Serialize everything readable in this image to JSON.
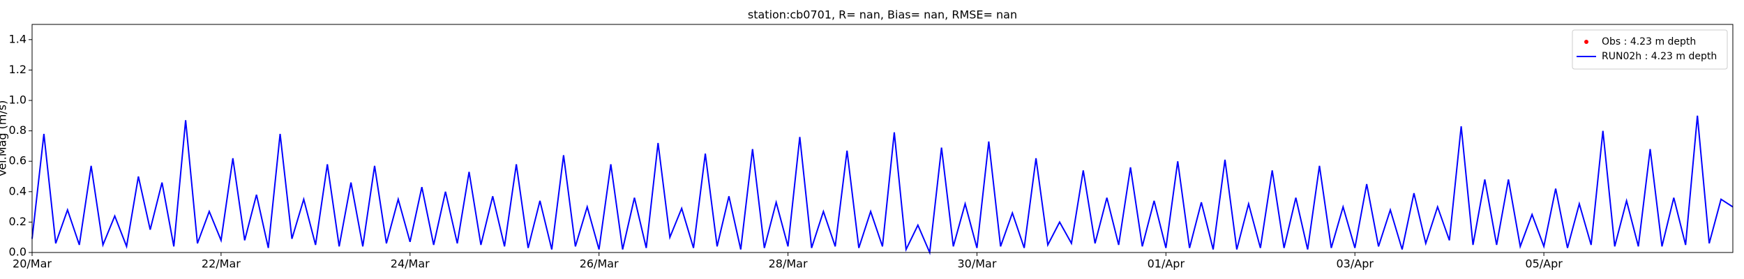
{
  "chart_data": {
    "type": "line",
    "title": "station:cb0701, R=   nan, Bias=    nan, RMSE=    nan",
    "y_label": "Vel.Mag (m/s)",
    "xlim": [
      0,
      18
    ],
    "xticks": [
      {
        "value": 0,
        "label": "20/Mar"
      },
      {
        "value": 2,
        "label": "22/Mar"
      },
      {
        "value": 4,
        "label": "24/Mar"
      },
      {
        "value": 6,
        "label": "26/Mar"
      },
      {
        "value": 8,
        "label": "28/Mar"
      },
      {
        "value": 10,
        "label": "30/Mar"
      },
      {
        "value": 12,
        "label": "01/Apr"
      },
      {
        "value": 14,
        "label": "03/Apr"
      },
      {
        "value": 16,
        "label": "05/Apr"
      }
    ],
    "ylim": [
      0,
      1.5
    ],
    "yticks": [
      {
        "value": 0,
        "label": "0.0"
      },
      0.2,
      0.4,
      0.6,
      0.8,
      {
        "value": 1,
        "label": "1.0"
      },
      1.2,
      1.4
    ],
    "grid": false,
    "legend": "upper right",
    "series": [
      {
        "name": "Obs : 4.23 m depth",
        "color": "#ff0000",
        "style": "marker",
        "x": [],
        "values": []
      },
      {
        "name": "RUN02h : 4.23 m depth",
        "color": "#0000ff",
        "style": "line",
        "x": [
          0,
          0.125,
          0.25,
          0.375,
          0.5,
          0.625,
          0.75,
          0.875,
          1,
          1.125,
          1.25,
          1.375,
          1.5,
          1.625,
          1.75,
          1.875,
          2,
          2.125,
          2.25,
          2.375,
          2.5,
          2.625,
          2.75,
          2.875,
          3,
          3.125,
          3.25,
          3.375,
          3.5,
          3.625,
          3.75,
          3.875,
          4,
          4.125,
          4.25,
          4.375,
          4.5,
          4.625,
          4.75,
          4.875,
          5,
          5.125,
          5.25,
          5.375,
          5.5,
          5.625,
          5.75,
          5.875,
          6,
          6.125,
          6.25,
          6.375,
          6.5,
          6.625,
          6.75,
          6.875,
          7,
          7.125,
          7.25,
          7.375,
          7.5,
          7.625,
          7.75,
          7.875,
          8,
          8.125,
          8.25,
          8.375,
          8.5,
          8.625,
          8.75,
          8.875,
          9,
          9.125,
          9.25,
          9.375,
          9.5,
          9.625,
          9.75,
          9.875,
          10,
          10.125,
          10.25,
          10.375,
          10.5,
          10.625,
          10.75,
          10.875,
          11,
          11.125,
          11.25,
          11.375,
          11.5,
          11.625,
          11.75,
          11.875,
          12,
          12.125,
          12.25,
          12.375,
          12.5,
          12.625,
          12.75,
          12.875,
          13,
          13.125,
          13.25,
          13.375,
          13.5,
          13.625,
          13.75,
          13.875,
          14,
          14.125,
          14.25,
          14.375,
          14.5,
          14.625,
          14.75,
          14.875,
          15,
          15.125,
          15.25,
          15.375,
          15.5,
          15.625,
          15.75,
          15.875,
          16,
          16.125,
          16.25,
          16.375,
          16.5,
          16.625,
          16.75,
          16.875,
          17,
          17.125,
          17.25,
          17.375,
          17.5,
          17.625,
          17.75,
          17.875,
          18
        ],
        "values": [
          0.09,
          0.78,
          0.06,
          0.28,
          0.05,
          0.57,
          0.05,
          0.24,
          0.04,
          0.5,
          0.15,
          0.46,
          0.04,
          0.87,
          0.06,
          0.27,
          0.08,
          0.62,
          0.08,
          0.38,
          0.03,
          0.78,
          0.09,
          0.35,
          0.05,
          0.58,
          0.04,
          0.46,
          0.04,
          0.57,
          0.06,
          0.35,
          0.07,
          0.43,
          0.05,
          0.4,
          0.06,
          0.53,
          0.05,
          0.37,
          0.04,
          0.58,
          0.03,
          0.34,
          0.02,
          0.64,
          0.04,
          0.3,
          0.02,
          0.58,
          0.02,
          0.36,
          0.03,
          0.72,
          0.1,
          0.29,
          0.03,
          0.65,
          0.04,
          0.37,
          0.02,
          0.68,
          0.03,
          0.33,
          0.04,
          0.76,
          0.03,
          0.27,
          0.04,
          0.67,
          0.03,
          0.27,
          0.04,
          0.79,
          0.02,
          0.18,
          0.0,
          0.69,
          0.04,
          0.32,
          0.03,
          0.73,
          0.04,
          0.26,
          0.03,
          0.62,
          0.05,
          0.2,
          0.06,
          0.54,
          0.06,
          0.36,
          0.05,
          0.56,
          0.04,
          0.34,
          0.03,
          0.6,
          0.03,
          0.33,
          0.02,
          0.61,
          0.02,
          0.32,
          0.03,
          0.54,
          0.03,
          0.36,
          0.02,
          0.57,
          0.03,
          0.3,
          0.03,
          0.45,
          0.04,
          0.28,
          0.02,
          0.39,
          0.06,
          0.3,
          0.08,
          0.83,
          0.05,
          0.48,
          0.05,
          0.48,
          0.04,
          0.25,
          0.04,
          0.42,
          0.03,
          0.32,
          0.05,
          0.8,
          0.04,
          0.34,
          0.04,
          0.68,
          0.04,
          0.36,
          0.05,
          0.9,
          0.06,
          0.35,
          0.3
        ]
      }
    ]
  }
}
